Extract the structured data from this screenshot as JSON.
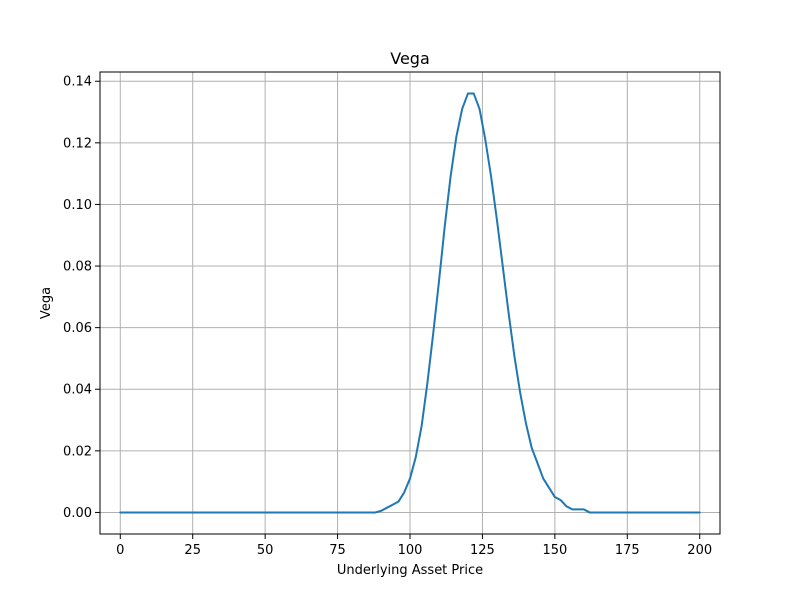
{
  "chart_data": {
    "type": "line",
    "title": "Vega",
    "xlabel": "Underlying Asset Price",
    "ylabel": "Vega",
    "xlim": [
      -7,
      207
    ],
    "ylim": [
      -0.007,
      0.143
    ],
    "xticks": [
      0,
      25,
      50,
      75,
      100,
      125,
      150,
      175,
      200
    ],
    "xtick_labels": [
      "0",
      "25",
      "50",
      "75",
      "100",
      "125",
      "150",
      "175",
      "200"
    ],
    "yticks": [
      0.0,
      0.02,
      0.04,
      0.06,
      0.08,
      0.1,
      0.12,
      0.14
    ],
    "ytick_labels": [
      "0.00",
      "0.02",
      "0.04",
      "0.06",
      "0.08",
      "0.10",
      "0.12",
      "0.14"
    ],
    "grid": true,
    "series": [
      {
        "color": "#1f77b4",
        "x": [
          0,
          80,
          88,
          90,
          92,
          94,
          96,
          98,
          100,
          102,
          104,
          106,
          108,
          110,
          112,
          114,
          116,
          118,
          120,
          122,
          124,
          126,
          128,
          130,
          132,
          134,
          136,
          138,
          140,
          142,
          144,
          146,
          148,
          150,
          152,
          154,
          156,
          158,
          160,
          162,
          164,
          200
        ],
        "y": [
          0,
          0,
          0,
          0.0005,
          0.0015,
          0.0025,
          0.0035,
          0.0065,
          0.011,
          0.018,
          0.028,
          0.042,
          0.058,
          0.075,
          0.093,
          0.109,
          0.122,
          0.131,
          0.136,
          0.136,
          0.131,
          0.121,
          0.109,
          0.095,
          0.08,
          0.065,
          0.051,
          0.039,
          0.029,
          0.021,
          0.016,
          0.011,
          0.008,
          0.005,
          0.004,
          0.002,
          0.001,
          0.001,
          0.001,
          0,
          0,
          0
        ]
      }
    ]
  }
}
